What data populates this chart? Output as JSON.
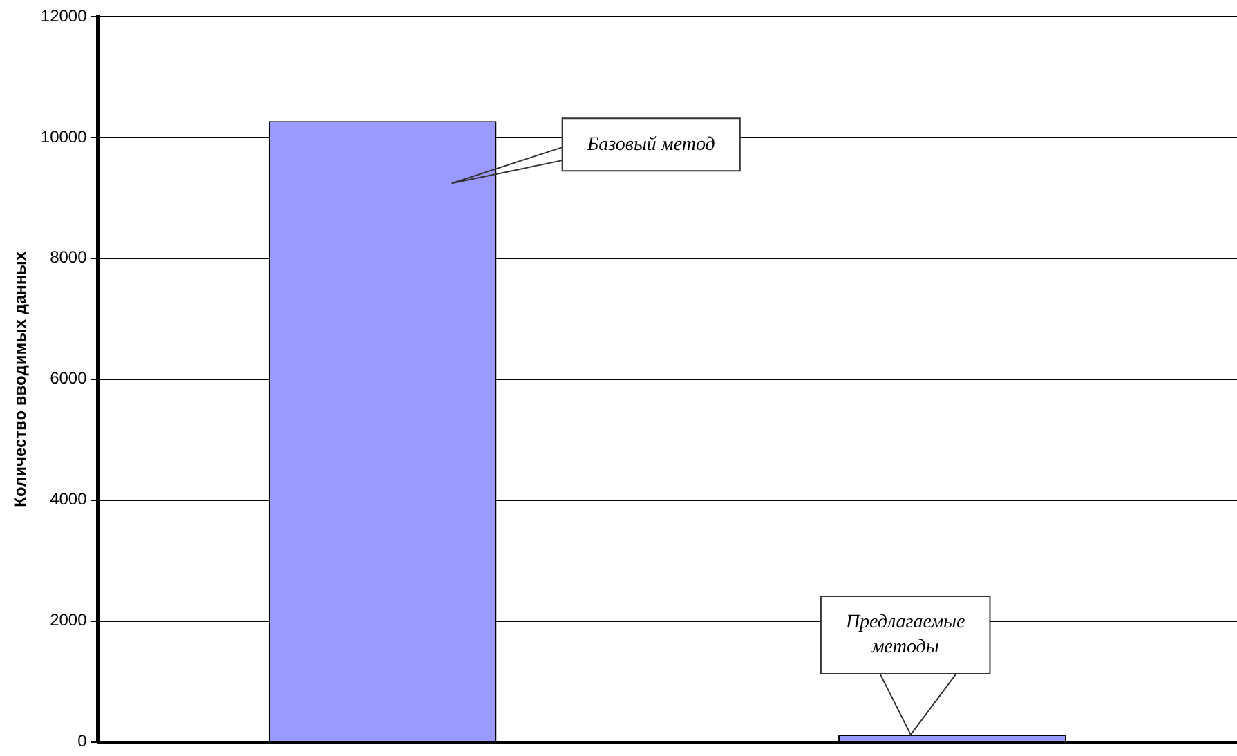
{
  "chart_data": {
    "type": "bar",
    "ylabel": "Количество вводимых данных",
    "categories": [
      null,
      null
    ],
    "values": [
      10270,
      120
    ],
    "color": "#9999ff",
    "ylim": [
      0,
      12000
    ],
    "yticks": [
      0,
      2000,
      4000,
      6000,
      8000,
      10000,
      12000
    ],
    "grid": "y",
    "annotations": [
      "Базовый метод",
      "Предлагаемые методы"
    ]
  }
}
